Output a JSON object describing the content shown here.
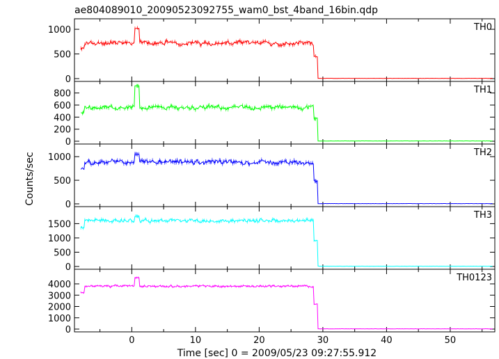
{
  "title": "ae804089010_20090523092755_wam0_bst_4band_16bin.qdp",
  "chart_data": {
    "type": "line",
    "title": "ae804089010_20090523092755_wam0_bst_4band_16bin.qdp",
    "xlabel": "Time [sec] 0 = 2009/05/23 09:27:55.912",
    "ylabel": "Counts/sec",
    "xlim": [
      -9,
      57
    ],
    "x_ticks": [
      0,
      10,
      20,
      30,
      40,
      50
    ],
    "step_end": 29.2,
    "x_start": -8,
    "panels": [
      {
        "name": "TH0",
        "color": "#ff0000",
        "ylim": [
          0,
          1100
        ],
        "y_ticks": [
          0,
          500,
          1000
        ],
        "level": 720,
        "noise": 55,
        "spike": 1020,
        "step_low": 450
      },
      {
        "name": "TH1",
        "color": "#00ff00",
        "ylim": [
          0,
          900
        ],
        "y_ticks": [
          0,
          200,
          400,
          600,
          800
        ],
        "level": 560,
        "noise": 45,
        "spike": 940,
        "step_low": 380
      },
      {
        "name": "TH2",
        "color": "#0000ff",
        "ylim": [
          0,
          1150
        ],
        "y_ticks": [
          0,
          500,
          1000
        ],
        "level": 880,
        "noise": 60,
        "spike": 1060,
        "step_low": 480
      },
      {
        "name": "TH3",
        "color": "#00ffff",
        "ylim": [
          0,
          1900
        ],
        "y_ticks": [
          0,
          500,
          1000,
          1500
        ],
        "level": 1600,
        "noise": 80,
        "spike": 1760,
        "step_low": 900
      },
      {
        "name": "TH0123",
        "color": "#ff00ff",
        "ylim": [
          0,
          4800
        ],
        "y_ticks": [
          0,
          1000,
          2000,
          3000,
          4000
        ],
        "level": 3800,
        "noise": 120,
        "spike": 4550,
        "step_low": 2200
      }
    ]
  }
}
